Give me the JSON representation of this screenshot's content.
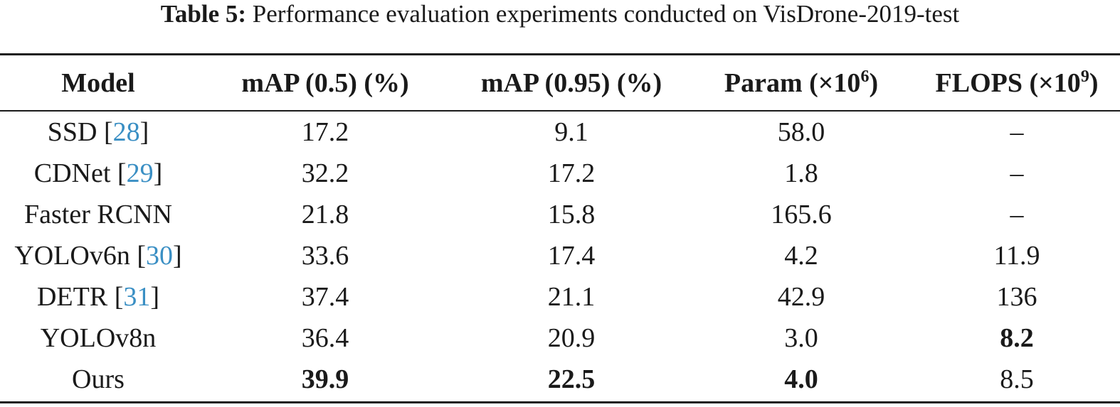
{
  "caption": {
    "label": "Table 5:",
    "text": "Performance evaluation experiments conducted on VisDrone-2019-test"
  },
  "table": {
    "headers": [
      {
        "text": "Model",
        "sup": ""
      },
      {
        "text": "mAP (0.5) (%)",
        "sup": ""
      },
      {
        "text": "mAP (0.95) (%)",
        "sup": ""
      },
      {
        "text": "Param (×10",
        "sup": "6",
        "close": ")"
      },
      {
        "text": "FLOPS (×10",
        "sup": "9",
        "close": ")"
      }
    ],
    "rows": [
      {
        "model": "SSD",
        "ref": "28",
        "map50": "17.2",
        "map95": "9.1",
        "param": "58.0",
        "flops": "–",
        "bold": []
      },
      {
        "model": "CDNet",
        "ref": "29",
        "map50": "32.2",
        "map95": "17.2",
        "param": "1.8",
        "flops": "–",
        "bold": []
      },
      {
        "model": "Faster RCNN",
        "ref": "",
        "map50": "21.8",
        "map95": "15.8",
        "param": "165.6",
        "flops": "–",
        "bold": []
      },
      {
        "model": "YOLOv6n",
        "ref": "30",
        "map50": "33.6",
        "map95": "17.4",
        "param": "4.2",
        "flops": "11.9",
        "bold": []
      },
      {
        "model": "DETR",
        "ref": "31",
        "map50": "37.4",
        "map95": "21.1",
        "param": "42.9",
        "flops": "136",
        "bold": []
      },
      {
        "model": "YOLOv8n",
        "ref": "",
        "map50": "36.4",
        "map95": "20.9",
        "param": "3.0",
        "flops": "8.2",
        "bold": [
          "flops"
        ]
      },
      {
        "model": "Ours",
        "ref": "",
        "map50": "39.9",
        "map95": "22.5",
        "param": "4.0",
        "flops": "8.5",
        "bold": [
          "map50",
          "map95",
          "param"
        ]
      }
    ]
  },
  "colors": {
    "text": "#1a1a1a",
    "reference_link": "#3a8fc4"
  }
}
